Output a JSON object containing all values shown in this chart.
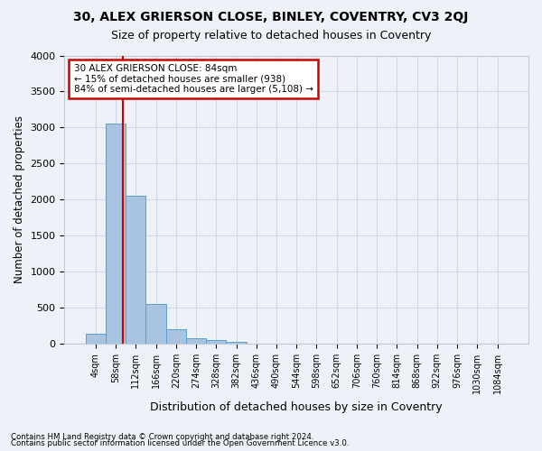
{
  "title1": "30, ALEX GRIERSON CLOSE, BINLEY, COVENTRY, CV3 2QJ",
  "title2": "Size of property relative to detached houses in Coventry",
  "xlabel": "Distribution of detached houses by size in Coventry",
  "ylabel": "Number of detached properties",
  "footnote1": "Contains HM Land Registry data © Crown copyright and database right 2024.",
  "footnote2": "Contains public sector information licensed under the Open Government Licence v3.0.",
  "bin_labels": [
    "4sqm",
    "58sqm",
    "112sqm",
    "166sqm",
    "220sqm",
    "274sqm",
    "328sqm",
    "382sqm",
    "436sqm",
    "490sqm",
    "544sqm",
    "598sqm",
    "652sqm",
    "706sqm",
    "760sqm",
    "814sqm",
    "868sqm",
    "922sqm",
    "976sqm",
    "1030sqm",
    "1084sqm"
  ],
  "bar_values": [
    140,
    3050,
    2060,
    550,
    200,
    75,
    50,
    30,
    0,
    0,
    0,
    0,
    0,
    0,
    0,
    0,
    0,
    0,
    0,
    0,
    0
  ],
  "bar_color": "#a8c4e0",
  "bar_edge_color": "#5a9fd4",
  "grid_color": "#d0d8e8",
  "bg_color": "#eef2f8",
  "vline_x": 1.35,
  "annotation_text": "30 ALEX GRIERSON CLOSE: 84sqm\n← 15% of detached houses are smaller (938)\n84% of semi-detached houses are larger (5,108) →",
  "annotation_box_color": "#ffffff",
  "annotation_border_color": "#cc0000",
  "ylim": [
    0,
    4000
  ],
  "yticks": [
    0,
    500,
    1000,
    1500,
    2000,
    2500,
    3000,
    3500,
    4000
  ]
}
